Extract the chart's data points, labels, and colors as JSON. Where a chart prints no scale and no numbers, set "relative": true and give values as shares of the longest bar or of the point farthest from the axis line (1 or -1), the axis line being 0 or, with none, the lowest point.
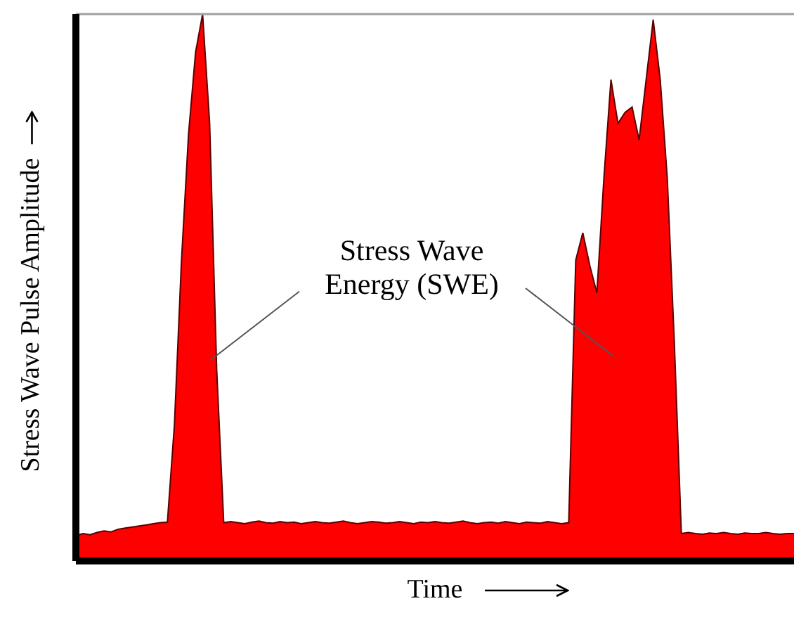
{
  "chart_data": {
    "type": "area",
    "relative": true,
    "xlabel": "Time",
    "ylabel": "Stress Wave Pulse Amplitude",
    "annotations": [
      "Stress Wave Energy (SWE)"
    ],
    "categories": [
      null,
      null,
      null,
      null,
      null,
      null,
      null,
      null,
      null,
      null,
      null,
      null,
      null,
      null,
      null,
      null,
      null,
      null,
      null,
      null,
      null,
      null,
      null,
      null,
      null,
      null,
      null,
      null,
      null,
      null,
      null,
      null,
      null,
      null,
      null,
      null,
      null,
      null,
      null,
      null,
      null,
      null,
      null,
      null,
      null,
      null,
      null,
      null,
      null,
      null,
      null,
      null,
      null,
      null,
      null,
      null,
      null,
      null,
      null,
      null,
      null,
      null,
      null,
      null,
      null,
      null,
      null,
      null,
      null,
      null,
      null,
      null,
      null,
      null,
      null,
      null,
      null,
      null,
      null,
      null,
      null,
      null,
      null,
      null,
      null,
      null,
      null,
      null,
      null,
      null,
      null,
      null,
      null,
      null,
      null,
      null,
      null,
      null,
      null,
      null,
      null,
      null,
      null
    ],
    "series": [
      {
        "color": "#ff0000",
        "values": [
          0.046,
          0.05,
          0.048,
          0.052,
          0.055,
          0.053,
          0.058,
          0.06,
          0.062,
          0.064,
          0.066,
          0.068,
          0.07,
          0.071,
          0.25,
          0.55,
          0.78,
          0.93,
          1.0,
          0.8,
          0.35,
          0.07,
          0.072,
          0.07,
          0.068,
          0.071,
          0.073,
          0.07,
          0.069,
          0.072,
          0.07,
          0.071,
          0.068,
          0.07,
          0.072,
          0.07,
          0.069,
          0.071,
          0.073,
          0.07,
          0.068,
          0.07,
          0.072,
          0.071,
          0.069,
          0.07,
          0.072,
          0.07,
          0.068,
          0.071,
          0.07,
          0.072,
          0.07,
          0.069,
          0.071,
          0.073,
          0.07,
          0.068,
          0.07,
          0.071,
          0.069,
          0.072,
          0.07,
          0.068,
          0.071,
          0.07,
          0.069,
          0.072,
          0.07,
          0.068,
          0.07,
          0.55,
          0.6,
          0.54,
          0.49,
          0.7,
          0.88,
          0.8,
          0.82,
          0.83,
          0.77,
          0.88,
          0.99,
          0.88,
          0.7,
          0.4,
          0.05,
          0.052,
          0.05,
          0.049,
          0.051,
          0.05,
          0.052,
          0.05,
          0.049,
          0.051,
          0.05,
          0.05,
          0.052,
          0.05,
          0.049,
          0.05,
          0.05
        ]
      }
    ],
    "ref_lines": [
      {
        "axis": "y",
        "value": 1,
        "color": "#a0a0a0"
      }
    ],
    "grid": false,
    "legend": false
  }
}
